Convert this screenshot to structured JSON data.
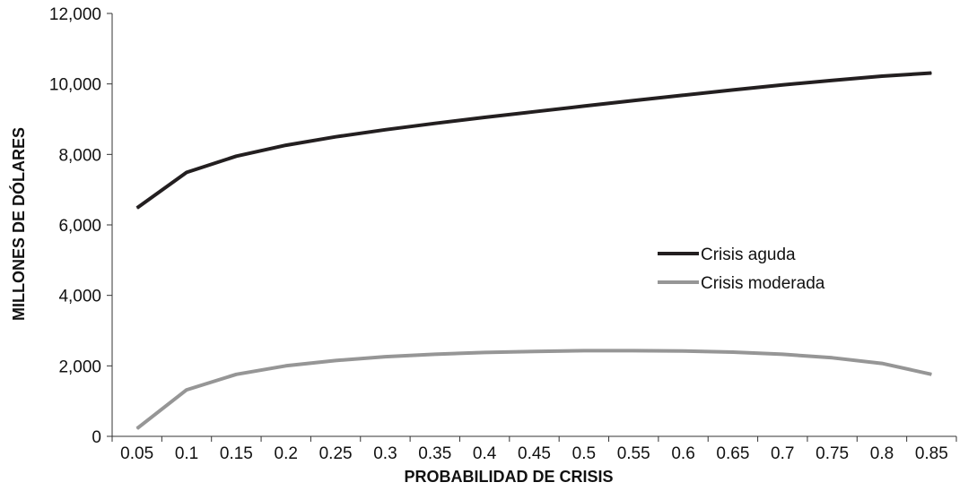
{
  "chart_data": {
    "type": "line",
    "title": "",
    "xlabel": "PROBABILIDAD DE CRISIS",
    "ylabel": "MILLONES DE DÓLARES",
    "categories": [
      "0.05",
      "0.1",
      "0.15",
      "0.2",
      "0.25",
      "0.3",
      "0.35",
      "0.4",
      "0.45",
      "0.5",
      "0.55",
      "0.6",
      "0.65",
      "0.7",
      "0.75",
      "0.8",
      "0.85"
    ],
    "ylim": [
      0,
      12000
    ],
    "yticks": [
      0,
      2000,
      4000,
      6000,
      8000,
      10000,
      12000
    ],
    "ytick_labels": [
      "0",
      "2,000",
      "4,000",
      "6,000",
      "8,000",
      "10,000",
      "12,000"
    ],
    "grid": false,
    "legend_position": "center-right",
    "series": [
      {
        "name": "Crisis aguda",
        "color": "#231f20",
        "values": [
          6480,
          7490,
          7950,
          8260,
          8500,
          8700,
          8880,
          9050,
          9210,
          9370,
          9530,
          9680,
          9830,
          9970,
          10100,
          10220,
          10310
        ]
      },
      {
        "name": "Crisis moderada",
        "color": "#969696",
        "values": [
          220,
          1320,
          1760,
          2000,
          2150,
          2260,
          2330,
          2380,
          2410,
          2430,
          2430,
          2420,
          2390,
          2330,
          2230,
          2070,
          1760
        ]
      }
    ]
  }
}
